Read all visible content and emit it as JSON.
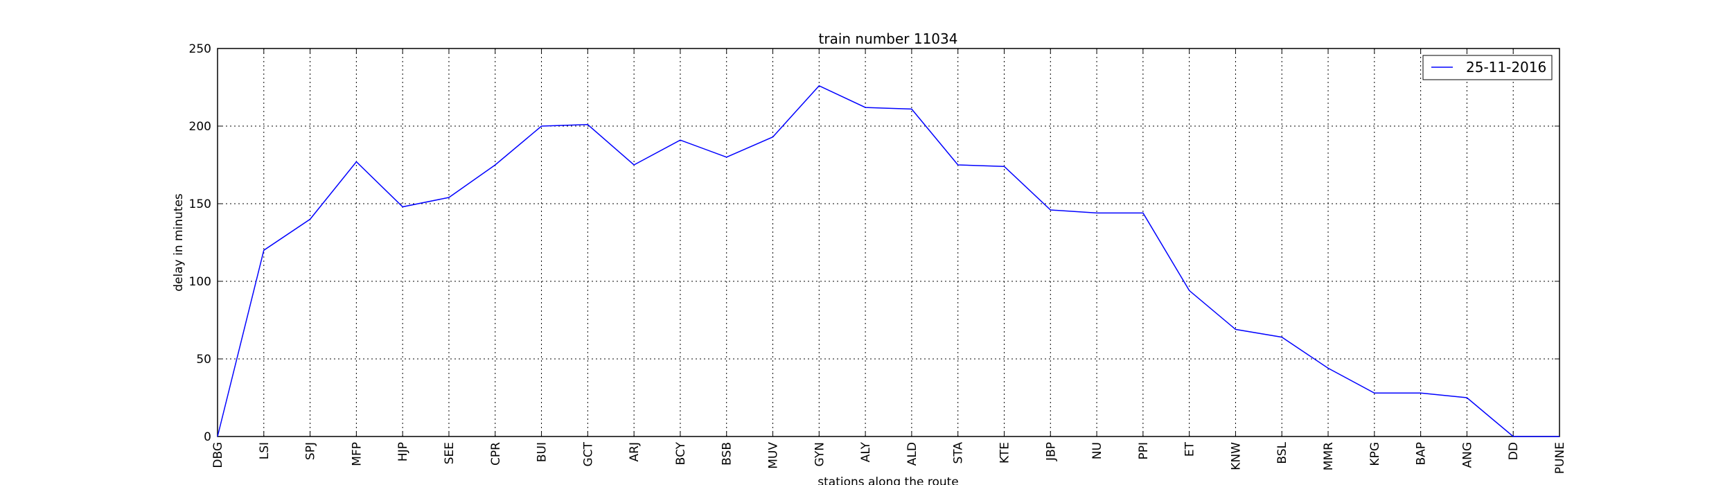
{
  "chart_data": {
    "type": "line",
    "title": "train number 11034",
    "xlabel": "stations along the route",
    "ylabel": "delay in minutes",
    "ylim": [
      0,
      250
    ],
    "yticks": [
      0,
      50,
      100,
      150,
      200,
      250
    ],
    "grid": true,
    "legend_position": "top-right",
    "categories": [
      "DBG",
      "LSI",
      "SPJ",
      "MFP",
      "HJP",
      "SEE",
      "CPR",
      "BUI",
      "GCT",
      "ARJ",
      "BCY",
      "BSB",
      "MUV",
      "GYN",
      "ALY",
      "ALD",
      "STA",
      "KTE",
      "JBP",
      "NU",
      "PPI",
      "ET",
      "KNW",
      "BSL",
      "MMR",
      "KPG",
      "BAP",
      "ANG",
      "DD",
      "PUNE"
    ],
    "series": [
      {
        "name": "25-11-2016",
        "color": "#0000ff",
        "values": [
          0,
          120,
          140,
          177,
          148,
          154,
          175,
          200,
          201,
          175,
          191,
          180,
          193,
          226,
          212,
          211,
          175,
          174,
          146,
          144,
          144,
          94,
          69,
          64,
          44,
          28,
          28,
          25,
          0,
          0
        ]
      }
    ]
  }
}
